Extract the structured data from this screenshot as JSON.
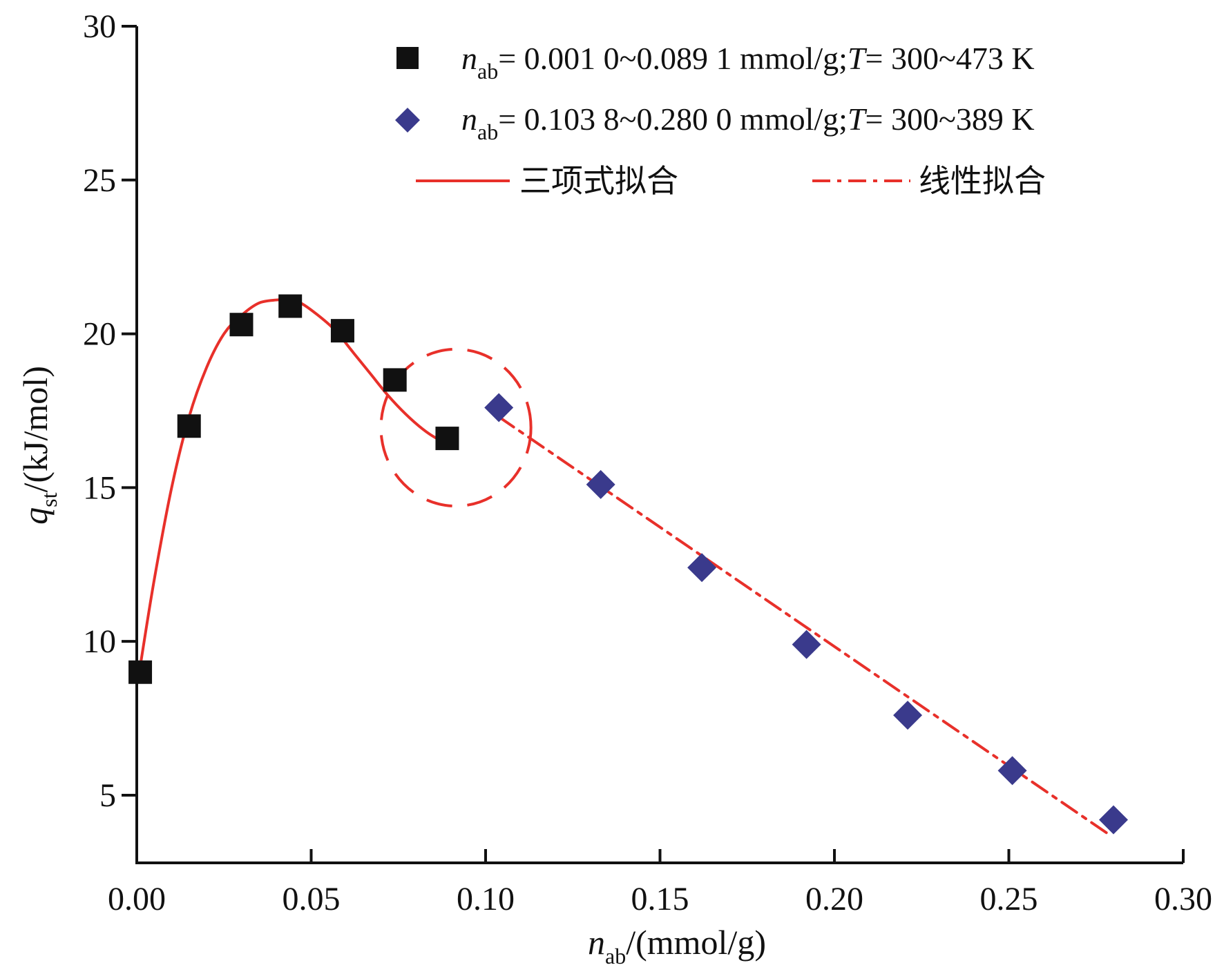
{
  "chart_data": {
    "type": "scatter",
    "xlabel": {
      "var": "n",
      "sub": "ab",
      "rest": "/(mmol/g)"
    },
    "ylabel": {
      "var": "q",
      "sub": "st",
      "rest": "/(kJ/mol)"
    },
    "xlim": [
      0,
      0.3
    ],
    "ylim": [
      2.8,
      30
    ],
    "x_ticks": [
      "0.00",
      "0.05",
      "0.10",
      "0.15",
      "0.20",
      "0.25",
      "0.30"
    ],
    "x_tick_values": [
      0,
      0.05,
      0.1,
      0.15,
      0.2,
      0.25,
      0.3
    ],
    "y_ticks": [
      "5",
      "10",
      "15",
      "20",
      "25",
      "30"
    ],
    "y_tick_values": [
      5,
      10,
      15,
      20,
      25,
      30
    ],
    "grid": false,
    "legend_position": "top-right",
    "series": [
      {
        "name": "= 0.001 0~0.089 1 mmol/g;",
        "legend": {
          "var": "n",
          "sub": "ab",
          "mid": "= 0.001 0~0.089 1 mmol/g;",
          "var2": "T",
          "tail": "= 300~473 K"
        },
        "marker": "square",
        "color": "#111111",
        "x": [
          0.001,
          0.015,
          0.03,
          0.044,
          0.059,
          0.074,
          0.089
        ],
        "y": [
          9.0,
          17.0,
          20.3,
          20.9,
          20.1,
          18.5,
          16.6
        ]
      },
      {
        "name": "= 0.103 8~0.280 0 mmol/g;",
        "legend": {
          "var": "n",
          "sub": "ab",
          "mid": "= 0.103 8~0.280 0 mmol/g;",
          "var2": "T",
          "tail": "= 300~389 K"
        },
        "marker": "diamond",
        "color": "#3a3a8c",
        "x": [
          0.1038,
          0.133,
          0.162,
          0.192,
          0.221,
          0.251,
          0.28
        ],
        "y": [
          17.6,
          15.1,
          12.4,
          9.9,
          7.6,
          5.8,
          4.2
        ]
      },
      {
        "name": "三项式拟合",
        "line_style": "solid",
        "color": "#e8302a",
        "x": [
          0.001,
          0.005,
          0.01,
          0.015,
          0.02,
          0.025,
          0.03,
          0.035,
          0.04,
          0.043,
          0.047,
          0.052,
          0.057,
          0.062,
          0.067,
          0.072,
          0.077,
          0.082,
          0.086,
          0.089
        ],
        "y": [
          9.2,
          12.0,
          15.0,
          17.3,
          18.9,
          20.0,
          20.6,
          21.0,
          21.1,
          21.1,
          21.0,
          20.6,
          20.1,
          19.4,
          18.7,
          18.0,
          17.4,
          16.9,
          16.6,
          16.5
        ]
      },
      {
        "name": "线性拟合",
        "line_style": "dash-dot",
        "color": "#e8302a",
        "x": [
          0.1038,
          0.279
        ],
        "y": [
          17.3,
          3.7
        ]
      }
    ],
    "annotations": [
      {
        "type": "dashed-circle",
        "color": "#e8302a",
        "cx": 0.0915,
        "cy": 16.95,
        "rx": 0.0215,
        "ry": 2.55
      }
    ]
  }
}
